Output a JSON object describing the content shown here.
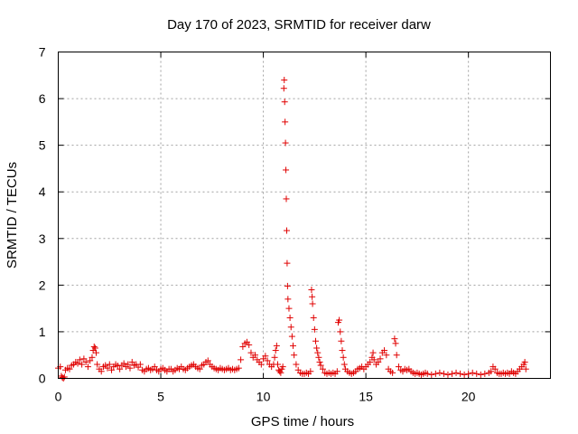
{
  "chart_data": {
    "type": "scatter",
    "title": "Day 170 of 2023, SRMTID for receiver darw",
    "xlabel": "GPS time / hours",
    "ylabel": "SRMTID / TECUs",
    "xlim": [
      0,
      24
    ],
    "ylim": [
      0,
      7
    ],
    "x_ticks": [
      "0",
      "5",
      "10",
      "15",
      "20"
    ],
    "y_ticks": [
      "0",
      "1",
      "2",
      "3",
      "4",
      "5",
      "6",
      "7"
    ],
    "grid": true,
    "marker": "plus",
    "color": "#e00000",
    "series": [
      {
        "points": [
          [
            0.0,
            0.22
          ],
          [
            0.1,
            0.25
          ],
          [
            0.15,
            0.05
          ],
          [
            0.2,
            0.02
          ],
          [
            0.25,
            0.0
          ],
          [
            0.3,
            0.03
          ],
          [
            0.35,
            0.18
          ],
          [
            0.45,
            0.22
          ],
          [
            0.55,
            0.2
          ],
          [
            0.65,
            0.28
          ],
          [
            0.75,
            0.3
          ],
          [
            0.85,
            0.35
          ],
          [
            0.95,
            0.32
          ],
          [
            1.05,
            0.4
          ],
          [
            1.15,
            0.3
          ],
          [
            1.25,
            0.42
          ],
          [
            1.35,
            0.35
          ],
          [
            1.45,
            0.25
          ],
          [
            1.55,
            0.38
          ],
          [
            1.65,
            0.45
          ],
          [
            1.7,
            0.6
          ],
          [
            1.75,
            0.68
          ],
          [
            1.8,
            0.65
          ],
          [
            1.85,
            0.55
          ],
          [
            1.9,
            0.3
          ],
          [
            2.0,
            0.2
          ],
          [
            2.1,
            0.15
          ],
          [
            2.2,
            0.25
          ],
          [
            2.3,
            0.28
          ],
          [
            2.4,
            0.22
          ],
          [
            2.5,
            0.3
          ],
          [
            2.6,
            0.18
          ],
          [
            2.7,
            0.25
          ],
          [
            2.8,
            0.3
          ],
          [
            2.9,
            0.27
          ],
          [
            3.0,
            0.2
          ],
          [
            3.1,
            0.28
          ],
          [
            3.2,
            0.32
          ],
          [
            3.3,
            0.25
          ],
          [
            3.4,
            0.3
          ],
          [
            3.5,
            0.22
          ],
          [
            3.6,
            0.35
          ],
          [
            3.7,
            0.28
          ],
          [
            3.8,
            0.3
          ],
          [
            3.9,
            0.24
          ],
          [
            4.0,
            0.3
          ],
          [
            4.1,
            0.18
          ],
          [
            4.2,
            0.15
          ],
          [
            4.3,
            0.2
          ],
          [
            4.4,
            0.22
          ],
          [
            4.5,
            0.18
          ],
          [
            4.6,
            0.2
          ],
          [
            4.7,
            0.25
          ],
          [
            4.8,
            0.18
          ],
          [
            4.9,
            0.15
          ],
          [
            5.0,
            0.2
          ],
          [
            5.1,
            0.22
          ],
          [
            5.2,
            0.18
          ],
          [
            5.3,
            0.15
          ],
          [
            5.4,
            0.2
          ],
          [
            5.5,
            0.2
          ],
          [
            5.6,
            0.15
          ],
          [
            5.7,
            0.18
          ],
          [
            5.8,
            0.22
          ],
          [
            5.9,
            0.2
          ],
          [
            6.0,
            0.25
          ],
          [
            6.1,
            0.2
          ],
          [
            6.2,
            0.18
          ],
          [
            6.3,
            0.22
          ],
          [
            6.4,
            0.25
          ],
          [
            6.5,
            0.28
          ],
          [
            6.6,
            0.3
          ],
          [
            6.7,
            0.25
          ],
          [
            6.8,
            0.22
          ],
          [
            6.9,
            0.2
          ],
          [
            7.0,
            0.28
          ],
          [
            7.1,
            0.3
          ],
          [
            7.2,
            0.35
          ],
          [
            7.3,
            0.38
          ],
          [
            7.4,
            0.3
          ],
          [
            7.5,
            0.25
          ],
          [
            7.6,
            0.22
          ],
          [
            7.7,
            0.2
          ],
          [
            7.8,
            0.18
          ],
          [
            7.9,
            0.22
          ],
          [
            8.0,
            0.2
          ],
          [
            8.1,
            0.18
          ],
          [
            8.2,
            0.2
          ],
          [
            8.3,
            0.22
          ],
          [
            8.4,
            0.18
          ],
          [
            8.5,
            0.2
          ],
          [
            8.6,
            0.18
          ],
          [
            8.7,
            0.2
          ],
          [
            8.8,
            0.22
          ],
          [
            8.9,
            0.4
          ],
          [
            9.0,
            0.68
          ],
          [
            9.1,
            0.75
          ],
          [
            9.2,
            0.78
          ],
          [
            9.3,
            0.72
          ],
          [
            9.4,
            0.55
          ],
          [
            9.5,
            0.45
          ],
          [
            9.6,
            0.5
          ],
          [
            9.7,
            0.4
          ],
          [
            9.8,
            0.35
          ],
          [
            9.9,
            0.3
          ],
          [
            10.0,
            0.42
          ],
          [
            10.1,
            0.48
          ],
          [
            10.2,
            0.38
          ],
          [
            10.3,
            0.3
          ],
          [
            10.4,
            0.25
          ],
          [
            10.5,
            0.3
          ],
          [
            10.55,
            0.45
          ],
          [
            10.6,
            0.6
          ],
          [
            10.65,
            0.7
          ],
          [
            10.7,
            0.3
          ],
          [
            10.75,
            0.18
          ],
          [
            10.8,
            0.15
          ],
          [
            10.85,
            0.12
          ],
          [
            10.9,
            0.2
          ],
          [
            10.95,
            0.25
          ],
          [
            11.0,
            6.22
          ],
          [
            11.02,
            6.4
          ],
          [
            11.04,
            5.93
          ],
          [
            11.06,
            5.5
          ],
          [
            11.08,
            5.05
          ],
          [
            11.1,
            4.47
          ],
          [
            11.12,
            3.85
          ],
          [
            11.14,
            3.17
          ],
          [
            11.16,
            2.47
          ],
          [
            11.18,
            1.98
          ],
          [
            11.2,
            1.7
          ],
          [
            11.25,
            1.5
          ],
          [
            11.3,
            1.3
          ],
          [
            11.35,
            1.1
          ],
          [
            11.4,
            0.9
          ],
          [
            11.45,
            0.7
          ],
          [
            11.5,
            0.5
          ],
          [
            11.6,
            0.3
          ],
          [
            11.7,
            0.18
          ],
          [
            11.8,
            0.12
          ],
          [
            11.9,
            0.1
          ],
          [
            12.0,
            0.1
          ],
          [
            12.1,
            0.12
          ],
          [
            12.2,
            0.1
          ],
          [
            12.3,
            0.15
          ],
          [
            12.35,
            1.9
          ],
          [
            12.38,
            1.75
          ],
          [
            12.4,
            1.6
          ],
          [
            12.45,
            1.3
          ],
          [
            12.5,
            1.05
          ],
          [
            12.55,
            0.8
          ],
          [
            12.6,
            0.65
          ],
          [
            12.65,
            0.55
          ],
          [
            12.7,
            0.45
          ],
          [
            12.75,
            0.35
          ],
          [
            12.8,
            0.28
          ],
          [
            12.9,
            0.2
          ],
          [
            13.0,
            0.12
          ],
          [
            13.1,
            0.1
          ],
          [
            13.2,
            0.12
          ],
          [
            13.3,
            0.1
          ],
          [
            13.4,
            0.12
          ],
          [
            13.5,
            0.1
          ],
          [
            13.6,
            0.15
          ],
          [
            13.65,
            1.2
          ],
          [
            13.7,
            1.25
          ],
          [
            13.75,
            1.0
          ],
          [
            13.8,
            0.8
          ],
          [
            13.85,
            0.6
          ],
          [
            13.9,
            0.45
          ],
          [
            13.95,
            0.3
          ],
          [
            14.0,
            0.2
          ],
          [
            14.1,
            0.15
          ],
          [
            14.2,
            0.12
          ],
          [
            14.3,
            0.1
          ],
          [
            14.4,
            0.12
          ],
          [
            14.5,
            0.15
          ],
          [
            14.6,
            0.2
          ],
          [
            14.7,
            0.22
          ],
          [
            14.8,
            0.25
          ],
          [
            14.9,
            0.2
          ],
          [
            15.0,
            0.25
          ],
          [
            15.1,
            0.3
          ],
          [
            15.2,
            0.35
          ],
          [
            15.3,
            0.45
          ],
          [
            15.35,
            0.55
          ],
          [
            15.4,
            0.4
          ],
          [
            15.5,
            0.3
          ],
          [
            15.6,
            0.35
          ],
          [
            15.7,
            0.42
          ],
          [
            15.8,
            0.55
          ],
          [
            15.9,
            0.6
          ],
          [
            16.0,
            0.5
          ],
          [
            16.1,
            0.2
          ],
          [
            16.2,
            0.15
          ],
          [
            16.3,
            0.12
          ],
          [
            16.4,
            0.85
          ],
          [
            16.45,
            0.75
          ],
          [
            16.5,
            0.5
          ],
          [
            16.6,
            0.25
          ],
          [
            16.7,
            0.18
          ],
          [
            16.8,
            0.15
          ],
          [
            16.9,
            0.2
          ],
          [
            17.0,
            0.18
          ],
          [
            17.1,
            0.2
          ],
          [
            17.2,
            0.15
          ],
          [
            17.3,
            0.12
          ],
          [
            17.4,
            0.1
          ],
          [
            17.5,
            0.12
          ],
          [
            17.6,
            0.1
          ],
          [
            17.7,
            0.08
          ],
          [
            17.8,
            0.1
          ],
          [
            17.9,
            0.12
          ],
          [
            18.0,
            0.1
          ],
          [
            18.2,
            0.08
          ],
          [
            18.4,
            0.1
          ],
          [
            18.6,
            0.12
          ],
          [
            18.8,
            0.1
          ],
          [
            19.0,
            0.08
          ],
          [
            19.2,
            0.1
          ],
          [
            19.4,
            0.12
          ],
          [
            19.6,
            0.1
          ],
          [
            19.8,
            0.08
          ],
          [
            20.0,
            0.1
          ],
          [
            20.2,
            0.12
          ],
          [
            20.4,
            0.1
          ],
          [
            20.6,
            0.08
          ],
          [
            20.8,
            0.1
          ],
          [
            21.0,
            0.12
          ],
          [
            21.1,
            0.15
          ],
          [
            21.2,
            0.25
          ],
          [
            21.3,
            0.2
          ],
          [
            21.4,
            0.12
          ],
          [
            21.5,
            0.1
          ],
          [
            21.6,
            0.1
          ],
          [
            21.7,
            0.12
          ],
          [
            21.8,
            0.1
          ],
          [
            21.9,
            0.12
          ],
          [
            22.0,
            0.1
          ],
          [
            22.1,
            0.15
          ],
          [
            22.2,
            0.12
          ],
          [
            22.3,
            0.1
          ],
          [
            22.4,
            0.15
          ],
          [
            22.5,
            0.2
          ],
          [
            22.6,
            0.25
          ],
          [
            22.7,
            0.3
          ],
          [
            22.75,
            0.35
          ],
          [
            22.8,
            0.2
          ]
        ]
      }
    ]
  }
}
